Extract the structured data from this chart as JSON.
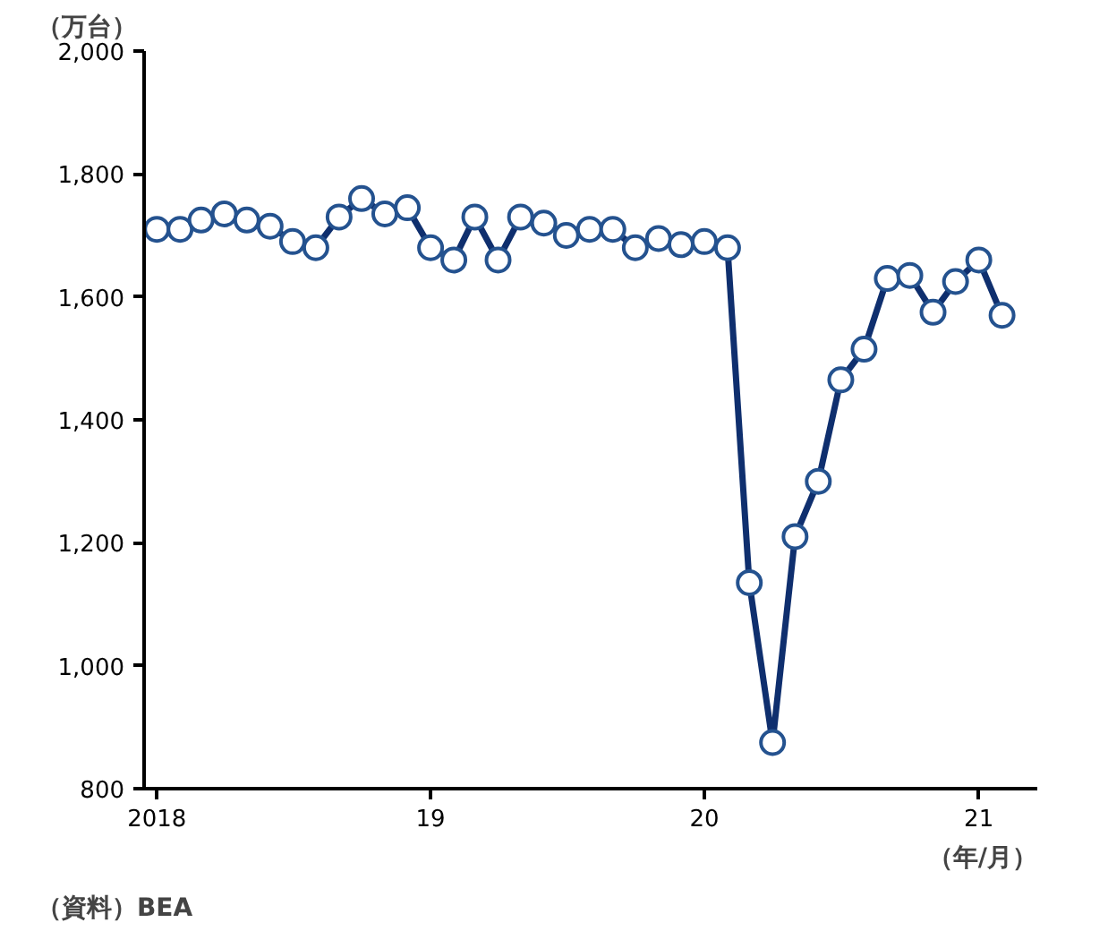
{
  "chart_data": {
    "type": "line",
    "ylabel": "（万台）",
    "xlabel": "（年/月）",
    "annotations": [
      "（資料）BEA"
    ],
    "x": [
      "2018-01",
      "2018-02",
      "2018-03",
      "2018-04",
      "2018-05",
      "2018-06",
      "2018-07",
      "2018-08",
      "2018-09",
      "2018-10",
      "2018-11",
      "2018-12",
      "2019-01",
      "2019-02",
      "2019-03",
      "2019-04",
      "2019-05",
      "2019-06",
      "2019-07",
      "2019-08",
      "2019-09",
      "2019-10",
      "2019-11",
      "2019-12",
      "2020-01",
      "2020-02",
      "2020-03",
      "2020-04",
      "2020-05",
      "2020-06",
      "2020-07",
      "2020-08",
      "2020-09",
      "2020-10",
      "2020-11",
      "2020-12",
      "2021-01",
      "2021-02"
    ],
    "series": [
      {
        "color": "#0f2f6e",
        "values": [
          1710,
          1710,
          1725,
          1735,
          1725,
          1715,
          1690,
          1680,
          1730,
          1760,
          1735,
          1745,
          1680,
          1660,
          1730,
          1660,
          1730,
          1720,
          1700,
          1710,
          1710,
          1680,
          1695,
          1685,
          1690,
          1680,
          1135,
          875,
          1210,
          1300,
          1465,
          1515,
          1630,
          1635,
          1575,
          1625,
          1660,
          1570
        ]
      }
    ],
    "xlim": [
      "2017-12-15",
      "2021-03-20"
    ],
    "xticks": [
      {
        "value": "2018-01",
        "label": "2018"
      },
      {
        "value": "2019-01",
        "label": "19"
      },
      {
        "value": "2020-01",
        "label": "20"
      },
      {
        "value": "2021-01",
        "label": "21"
      }
    ],
    "ylim": [
      800,
      2000
    ],
    "yticks": [
      {
        "value": 800,
        "label": "800"
      },
      {
        "value": 1000,
        "label": "1,000"
      },
      {
        "value": 1200,
        "label": "1,200"
      },
      {
        "value": 1400,
        "label": "1,400"
      },
      {
        "value": 1600,
        "label": "1,600"
      },
      {
        "value": 1800,
        "label": "1,800"
      },
      {
        "value": 2000,
        "label": "2,000"
      }
    ],
    "grid": false,
    "marker": "circle",
    "line_style": "solid"
  }
}
